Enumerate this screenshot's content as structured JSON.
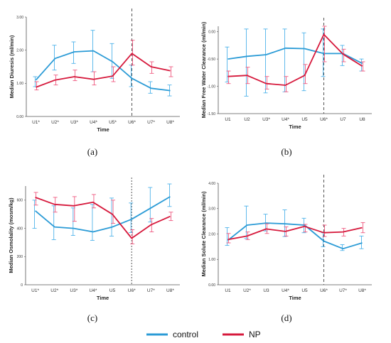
{
  "colors": {
    "control": "#2b9bd6",
    "NP": "#d6193c",
    "control_err": "#4fb3ea",
    "NP_err": "#ef5a80",
    "axis": "#555555"
  },
  "legend": [
    {
      "label": "control",
      "color": "#2b9bd6"
    },
    {
      "label": "NP",
      "color": "#d6193c"
    }
  ],
  "chart_data": [
    {
      "type": "line",
      "panel": "(a)",
      "title": "",
      "xlabel": "Time",
      "ylabel": "Median Diuresis (ml/min)",
      "categories": [
        "U1*",
        "U2*",
        "U3*",
        "U4*",
        "U5*",
        "U6*",
        "U7*",
        "U8*"
      ],
      "ylim": [
        0,
        3
      ],
      "yticks": [
        "0.00",
        "1.00",
        "2.00",
        "3.00"
      ],
      "dashed_line_at": "U6*",
      "series": [
        {
          "name": "control",
          "values": [
            1.1,
            1.75,
            1.95,
            1.98,
            1.65,
            1.15,
            0.85,
            0.78
          ],
          "err_low": [
            0.9,
            1.4,
            1.6,
            1.35,
            1.15,
            0.9,
            0.7,
            0.62
          ],
          "err_high": [
            1.2,
            2.15,
            2.25,
            2.6,
            2.2,
            1.55,
            1.05,
            0.95
          ]
        },
        {
          "name": "NP",
          "values": [
            0.88,
            1.1,
            1.2,
            1.12,
            1.22,
            1.9,
            1.5,
            1.38
          ],
          "err_low": [
            0.8,
            0.95,
            1.08,
            0.95,
            1.05,
            1.55,
            1.3,
            1.2
          ],
          "err_high": [
            1.05,
            1.25,
            1.4,
            1.35,
            1.5,
            2.3,
            1.65,
            1.5
          ]
        }
      ]
    },
    {
      "type": "line",
      "panel": "(b)",
      "title": "",
      "xlabel": "Time",
      "ylabel": "Median Free Water Clearance (ml/min)",
      "categories": [
        "U1",
        "U2",
        "U3*",
        "U4*",
        "U5",
        "U6*",
        "U7",
        "U8"
      ],
      "ylim": [
        -1.5,
        0.1
      ],
      "yticks": [
        "0.00",
        "-0.50",
        "-1.00",
        "-1.50"
      ],
      "dashed_line_at": "U6*",
      "series": [
        {
          "name": "control",
          "values": [
            -0.5,
            -0.45,
            -0.42,
            -0.3,
            -0.31,
            -0.4,
            -0.4,
            -0.58
          ],
          "err_low": [
            -0.92,
            -1.18,
            -1.12,
            -1.1,
            -1.08,
            -0.82,
            -0.62,
            -0.72
          ],
          "err_high": [
            -0.28,
            0.05,
            0.05,
            0.05,
            -0.02,
            0.05,
            -0.25,
            -0.5
          ]
        },
        {
          "name": "NP",
          "values": [
            -0.82,
            -0.8,
            -0.95,
            -0.98,
            -0.8,
            -0.05,
            -0.41,
            -0.63
          ],
          "err_low": [
            -0.95,
            -0.95,
            -1.05,
            -1.1,
            -0.95,
            -0.55,
            -0.55,
            -0.72
          ],
          "err_high": [
            -0.72,
            -0.65,
            -0.82,
            -0.82,
            -0.6,
            0.1,
            -0.32,
            -0.55
          ]
        }
      ]
    },
    {
      "type": "line",
      "panel": "(c)",
      "title": "",
      "xlabel": "Time",
      "ylabel": "Median Osmolality (mosm/kg)",
      "categories": [
        "U1*",
        "U2*",
        "U3*",
        "U4*",
        "U5",
        "U6*",
        "U7*",
        "U8*"
      ],
      "ylim": [
        0,
        700
      ],
      "yticks": [
        "0",
        "200",
        "400",
        "600"
      ],
      "dashed_line_at": "U6*",
      "series": [
        {
          "name": "control",
          "values": [
            525,
            410,
            400,
            375,
            410,
            465,
            545,
            625
          ],
          "err_low": [
            400,
            320,
            350,
            315,
            345,
            370,
            445,
            555
          ],
          "err_high": [
            600,
            560,
            545,
            570,
            615,
            580,
            690,
            715
          ]
        },
        {
          "name": "NP",
          "values": [
            620,
            570,
            560,
            585,
            500,
            330,
            425,
            485
          ],
          "err_low": [
            565,
            515,
            450,
            545,
            435,
            290,
            375,
            455
          ],
          "err_high": [
            655,
            620,
            625,
            640,
            600,
            390,
            470,
            515
          ]
        }
      ]
    },
    {
      "type": "line",
      "panel": "(d)",
      "title": "",
      "xlabel": "Time",
      "ylabel": "Median Solute Clearance (ml/min)",
      "categories": [
        "U1",
        "U2*",
        "U3",
        "U4*",
        "U5",
        "U6*",
        "U7*",
        "U8*"
      ],
      "ylim": [
        0,
        4
      ],
      "yticks": [
        "0.00",
        "1.00",
        "2.00",
        "3.00",
        "4.00"
      ],
      "dashed_line_at": "U6*",
      "series": [
        {
          "name": "control",
          "values": [
            1.75,
            2.35,
            2.43,
            2.4,
            2.35,
            1.72,
            1.42,
            1.65
          ],
          "err_low": [
            1.55,
            1.82,
            2.12,
            1.9,
            2.05,
            1.5,
            1.35,
            1.42
          ],
          "err_high": [
            2.25,
            3.1,
            2.78,
            2.95,
            2.62,
            2.05,
            1.58,
            1.92
          ]
        },
        {
          "name": "NP",
          "values": [
            1.78,
            1.92,
            2.2,
            2.1,
            2.3,
            2.05,
            2.08,
            2.25
          ],
          "err_low": [
            1.65,
            1.78,
            2.02,
            1.92,
            2.08,
            1.9,
            1.92,
            2.05
          ],
          "err_high": [
            2.02,
            2.08,
            2.4,
            2.28,
            2.38,
            2.35,
            2.22,
            2.45
          ]
        }
      ]
    }
  ]
}
